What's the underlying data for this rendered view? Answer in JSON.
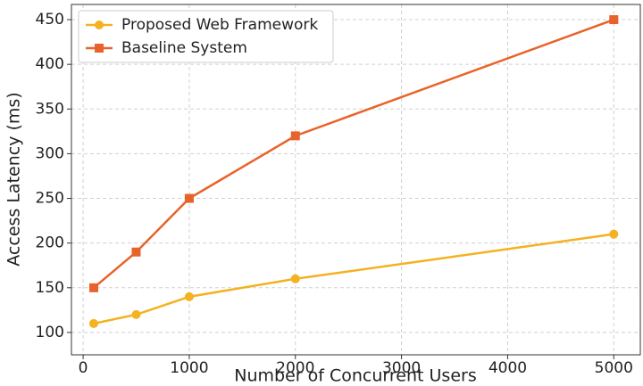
{
  "chart_data": {
    "type": "line",
    "x_label": "Number of Concurrent Users",
    "y_label": "Access Latency (ms)",
    "x": [
      100,
      500,
      1000,
      2000,
      5000
    ],
    "series": [
      {
        "name": "Proposed Web Framework",
        "color": "#f4b120",
        "marker": "circle",
        "values": [
          110,
          120,
          140,
          160,
          210
        ]
      },
      {
        "name": "Baseline System",
        "color": "#e8632a",
        "marker": "square",
        "values": [
          150,
          190,
          250,
          320,
          450
        ]
      }
    ],
    "xlim": [
      -110,
      5250
    ],
    "xticks": [
      0,
      1000,
      2000,
      3000,
      4000,
      5000
    ],
    "ylim": [
      75,
      467
    ],
    "yticks": [
      100,
      150,
      200,
      250,
      300,
      350,
      400,
      450
    ],
    "grid": true,
    "legend": "upper left"
  }
}
